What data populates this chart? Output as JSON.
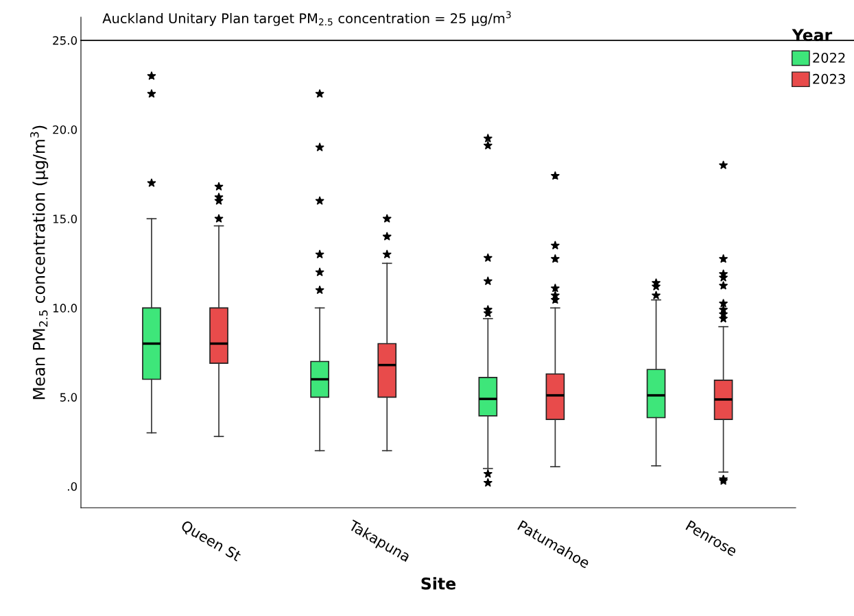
{
  "chart_data": {
    "type": "box",
    "xlabel": "Site",
    "ylabel": "Mean PM$_{2.5}$ concentration (µg/m$^{3}$)",
    "legend_title": "Year",
    "legend": "top right",
    "marker": "star",
    "grid": false,
    "categories": [
      "Queen St",
      "Takapuna",
      "Patumahoe",
      "Penrose"
    ],
    "ylim": [
      -1.2,
      26.3
    ],
    "yticks": [
      {
        "value": 0,
        "label": ".0"
      },
      {
        "value": 5,
        "label": "5.0"
      },
      {
        "value": 10,
        "label": "10.0"
      },
      {
        "value": 15,
        "label": "15.0"
      },
      {
        "value": 20,
        "label": "20.0"
      },
      {
        "value": 25,
        "label": "25.0"
      }
    ],
    "ref_lines": [
      {
        "axis": "y",
        "value": 25,
        "label": "Auckland Unitary Plan target PM$_{2.5}$ concentration = 25 µg/m$^{3}$",
        "color": "#000000"
      }
    ],
    "series": [
      {
        "name": "2022",
        "color": "#3ee67a",
        "boxes": [
          {
            "low": 3.0,
            "q1": 6.0,
            "median": 8.0,
            "q3": 10.0,
            "high": 15.0,
            "outliers": [
              17.0,
              22.0,
              23.0
            ]
          },
          {
            "low": 2.0,
            "q1": 5.0,
            "median": 6.0,
            "q3": 7.0,
            "high": 10.0,
            "outliers": [
              11.0,
              12.0,
              13.0,
              16.0,
              19.0,
              22.0
            ]
          },
          {
            "low": 1.0,
            "q1": 3.95,
            "median": 4.9,
            "q3": 6.1,
            "high": 9.4,
            "outliers": [
              0.2,
              0.7,
              9.7,
              9.9,
              11.5,
              12.8,
              19.1,
              19.5
            ]
          },
          {
            "low": 1.15,
            "q1": 3.85,
            "median": 5.1,
            "q3": 6.55,
            "high": 10.45,
            "outliers": [
              10.7,
              11.2,
              11.4
            ]
          }
        ]
      },
      {
        "name": "2023",
        "color": "#e84b4b",
        "boxes": [
          {
            "low": 2.8,
            "q1": 6.9,
            "median": 8.0,
            "q3": 10.0,
            "high": 14.6,
            "outliers": [
              15.0,
              16.0,
              16.2,
              16.8
            ]
          },
          {
            "low": 2.0,
            "q1": 5.0,
            "median": 6.8,
            "q3": 8.0,
            "high": 12.5,
            "outliers": [
              13.0,
              14.0,
              15.0
            ]
          },
          {
            "low": 1.1,
            "q1": 3.75,
            "median": 5.1,
            "q3": 6.3,
            "high": 10.0,
            "outliers": [
              10.45,
              10.7,
              11.1,
              12.75,
              13.5,
              17.4
            ]
          },
          {
            "low": 0.8,
            "q1": 3.75,
            "median": 4.87,
            "q3": 5.95,
            "high": 8.95,
            "outliers": [
              0.3,
              0.4,
              9.4,
              9.65,
              9.9,
              10.25,
              11.25,
              11.7,
              11.9,
              12.75,
              18.0
            ]
          }
        ]
      }
    ]
  }
}
